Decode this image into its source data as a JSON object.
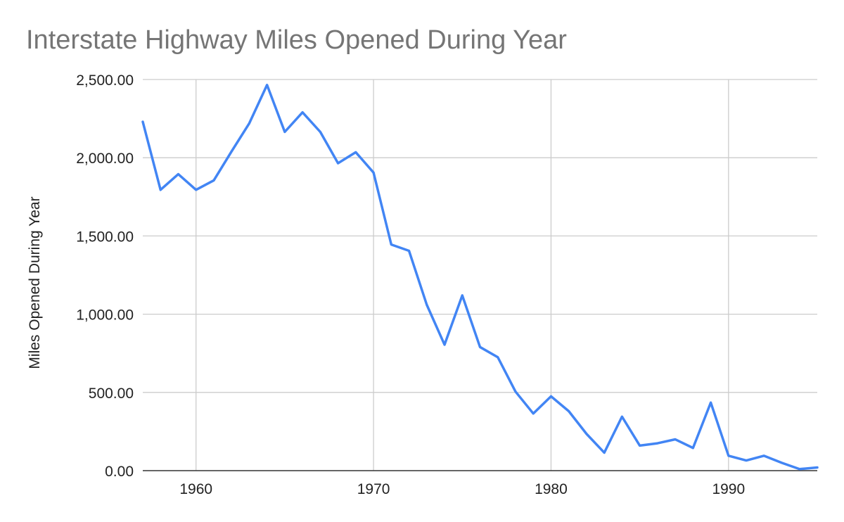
{
  "chart_data": {
    "type": "line",
    "title": "Interstate Highway Miles Opened During Year",
    "ylabel": "Miles Opened During Year",
    "xlabel": "",
    "xlim": [
      1957,
      1995
    ],
    "ylim": [
      0,
      2500
    ],
    "x_ticks": [
      1960,
      1970,
      1980,
      1990
    ],
    "y_ticks": [
      0,
      500,
      1000,
      1500,
      2000,
      2500
    ],
    "y_tick_labels": [
      "0.00",
      "500.00",
      "1,000.00",
      "1,500.00",
      "2,000.00",
      "2,500.00"
    ],
    "grid": true,
    "legend": "none",
    "series": [
      {
        "color": "#4285f4",
        "x": [
          1957,
          1958,
          1959,
          1960,
          1961,
          1962,
          1963,
          1964,
          1965,
          1966,
          1967,
          1968,
          1969,
          1970,
          1971,
          1972,
          1973,
          1974,
          1975,
          1976,
          1977,
          1978,
          1979,
          1980,
          1981,
          1982,
          1983,
          1984,
          1985,
          1986,
          1987,
          1988,
          1989,
          1990,
          1991,
          1992,
          1993,
          1994,
          1995
        ],
        "values": [
          2230,
          1795,
          1895,
          1795,
          1855,
          2040,
          2220,
          2465,
          2165,
          2290,
          2165,
          1965,
          2035,
          1905,
          1445,
          1405,
          1060,
          805,
          1120,
          790,
          725,
          505,
          365,
          475,
          380,
          235,
          115,
          345,
          160,
          175,
          200,
          145,
          435,
          95,
          65,
          95,
          50,
          10,
          20
        ]
      }
    ]
  }
}
